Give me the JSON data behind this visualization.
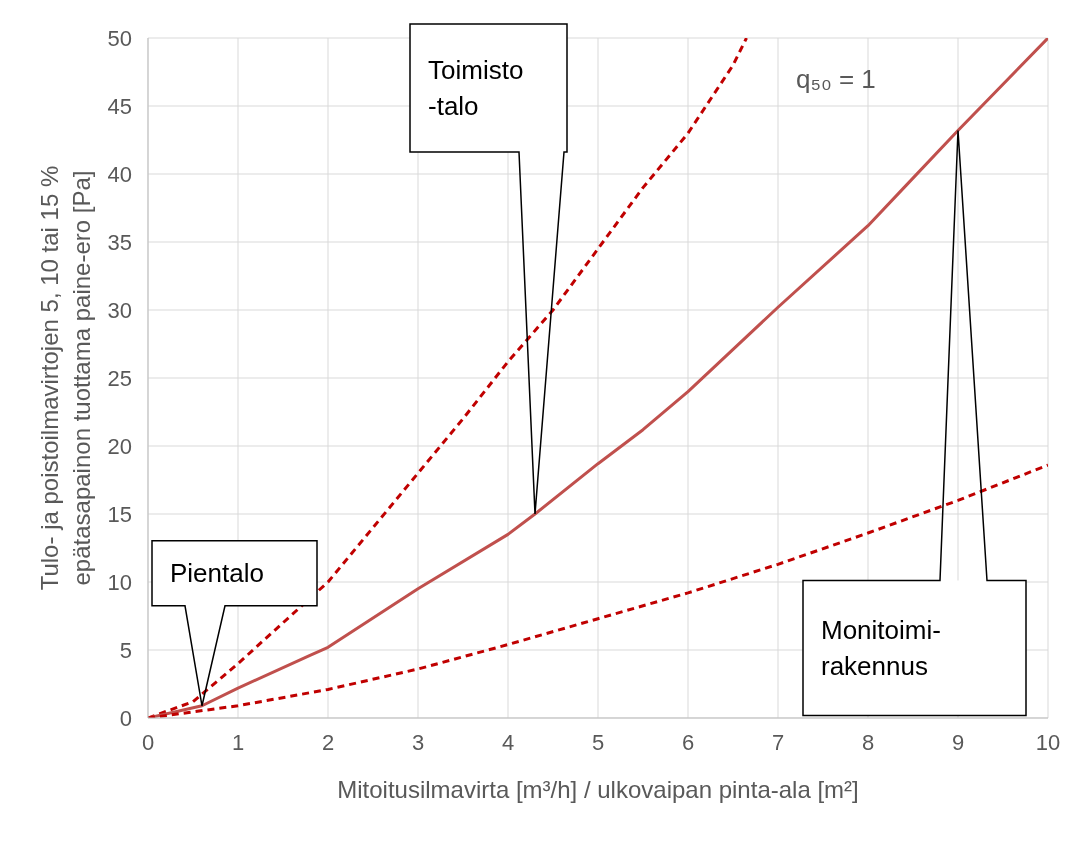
{
  "chart_data": {
    "type": "line",
    "xlabel": "Mitoitusilmavirta [m³/h] / ulkovaipan pinta-ala [m²]",
    "ylabel": "Tulo- ja poistoilmavirtojen 5, 10 tai 15 %\nepätasapainon tuottama paine-ero [Pa]",
    "xlim": [
      0,
      10
    ],
    "xticks": [
      0,
      1,
      2,
      3,
      4,
      5,
      6,
      7,
      8,
      9,
      10
    ],
    "ylim": [
      0,
      50
    ],
    "yticks": [
      0,
      5,
      10,
      15,
      20,
      25,
      30,
      35,
      40,
      45,
      50
    ],
    "grid": true,
    "marker": "none",
    "series": [
      {
        "color": "#c00000",
        "line_style": "dashed",
        "x": [
          0,
          0.5,
          1,
          1.5,
          2,
          2.5,
          3,
          3.5,
          4,
          4.5,
          5,
          5.5,
          6,
          6.5,
          6.65
        ],
        "values": [
          0,
          1.2,
          4,
          7,
          10,
          14,
          18,
          22,
          26.2,
          30,
          34.5,
          39,
          43,
          48,
          50
        ]
      },
      {
        "color": "#c0504d",
        "line_style": "solid",
        "x": [
          0,
          0.6,
          1,
          1.8,
          2,
          3,
          4,
          4.3,
          5,
          5.5,
          6,
          7,
          8,
          8.4,
          9,
          10
        ],
        "values": [
          0,
          0.9,
          2.2,
          4.6,
          5.2,
          9.5,
          13.5,
          15,
          18.7,
          21.2,
          24,
          30.2,
          36.2,
          39,
          43.2,
          50
        ]
      },
      {
        "color": "#c00000",
        "line_style": "dashed",
        "x": [
          0,
          1,
          2,
          3,
          4,
          5,
          6,
          7,
          8,
          9,
          10
        ],
        "values": [
          0,
          0.9,
          2.1,
          3.6,
          5.4,
          7.3,
          9.2,
          11.3,
          13.6,
          16,
          18.6
        ]
      }
    ],
    "annotations": [
      "Pientalo",
      "Toimisto\n-talo",
      "Monitoimi-\nrakennus",
      "q₅₀ = 1"
    ]
  }
}
